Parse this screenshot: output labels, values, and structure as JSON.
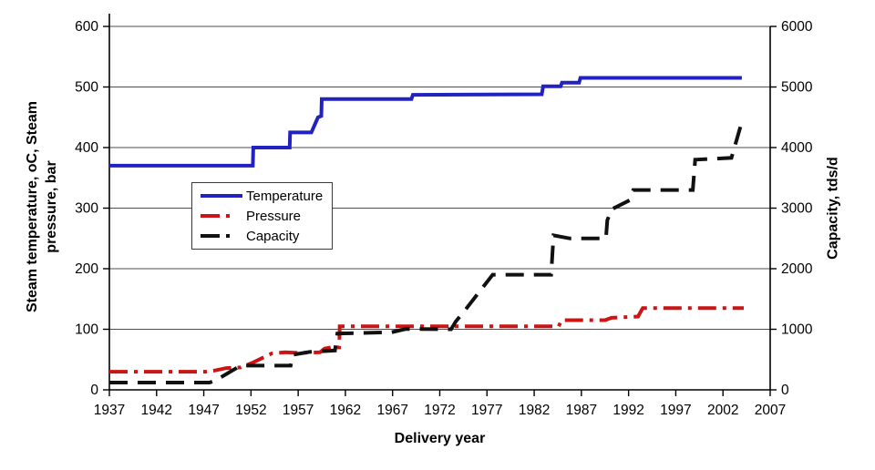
{
  "chart_data": {
    "type": "line",
    "title": "",
    "xlabel": "Delivery year",
    "ylabel_left_lines": [
      "Steam temperature, oC, Steam",
      "pressure, bar"
    ],
    "ylabel_right": "Capacity, tds/d",
    "grid": true,
    "legend_position": "inside-center-left",
    "x_axis": {
      "min": 1937,
      "max": 2007,
      "ticks": [
        1937,
        1942,
        1947,
        1952,
        1957,
        1962,
        1967,
        1972,
        1977,
        1982,
        1987,
        1992,
        1997,
        2002,
        2007
      ]
    },
    "y_left_axis": {
      "min": 0,
      "max": 600,
      "ticks": [
        0,
        100,
        200,
        300,
        400,
        500,
        600
      ]
    },
    "y_right_axis": {
      "min": 0,
      "max": 6000,
      "ticks": [
        0,
        1000,
        2000,
        3000,
        4000,
        5000,
        6000
      ]
    },
    "series": [
      {
        "name": "Temperature",
        "unit": "oC",
        "axis": "left",
        "color": "#2222C0",
        "style": "solid",
        "points": [
          [
            1937,
            370
          ],
          [
            1952.2,
            370
          ],
          [
            1952.25,
            400
          ],
          [
            1956.1,
            400
          ],
          [
            1956.15,
            425
          ],
          [
            1958.4,
            425
          ],
          [
            1959.1,
            450
          ],
          [
            1959.45,
            452
          ],
          [
            1959.5,
            480
          ],
          [
            1969,
            480
          ],
          [
            1969.15,
            487
          ],
          [
            1982.8,
            488
          ],
          [
            1982.95,
            501
          ],
          [
            1984.8,
            501
          ],
          [
            1984.95,
            507
          ],
          [
            1986.75,
            507
          ],
          [
            1986.9,
            515
          ],
          [
            2004,
            515
          ]
        ]
      },
      {
        "name": "Pressure",
        "unit": "bar",
        "axis": "left",
        "color": "#CC1414",
        "style": "dash-dot",
        "points": [
          [
            1937,
            30
          ],
          [
            1947.2,
            30
          ],
          [
            1948.2,
            32
          ],
          [
            1949.4,
            36
          ],
          [
            1950.9,
            37
          ],
          [
            1952.2,
            45
          ],
          [
            1954.2,
            60
          ],
          [
            1955.6,
            62
          ],
          [
            1957,
            61
          ],
          [
            1959.3,
            62
          ],
          [
            1959.8,
            68
          ],
          [
            1960.5,
            70
          ],
          [
            1961.35,
            70
          ],
          [
            1961.4,
            105
          ],
          [
            1984.6,
            105
          ],
          [
            1984.9,
            115
          ],
          [
            1989.5,
            115
          ],
          [
            1990.2,
            119
          ],
          [
            1993,
            121
          ],
          [
            1993.5,
            135
          ],
          [
            2004.2,
            135
          ]
        ]
      },
      {
        "name": "Capacity",
        "unit": "tds/d",
        "axis": "right",
        "color": "#111111",
        "style": "dash",
        "points": [
          [
            1937,
            120
          ],
          [
            1947.6,
            120
          ],
          [
            1948.2,
            150
          ],
          [
            1949.6,
            280
          ],
          [
            1950.9,
            400
          ],
          [
            1956.2,
            400
          ],
          [
            1956.45,
            580
          ],
          [
            1958.2,
            625
          ],
          [
            1960.9,
            650
          ],
          [
            1961.15,
            930
          ],
          [
            1966.9,
            950
          ],
          [
            1968.4,
            1005
          ],
          [
            1973.2,
            1000
          ],
          [
            1973.7,
            1130
          ],
          [
            1974.7,
            1320
          ],
          [
            1977.1,
            1800
          ],
          [
            1977.6,
            1900
          ],
          [
            1983.8,
            1900
          ],
          [
            1984.05,
            2550
          ],
          [
            1985.8,
            2500
          ],
          [
            1989.6,
            2500
          ],
          [
            1989.75,
            2800
          ],
          [
            1990.2,
            2980
          ],
          [
            1992.1,
            3130
          ],
          [
            1992.5,
            3300
          ],
          [
            1998.8,
            3300
          ],
          [
            1999.05,
            3800
          ],
          [
            2002.9,
            3830
          ],
          [
            2004.05,
            4450
          ]
        ]
      }
    ]
  }
}
